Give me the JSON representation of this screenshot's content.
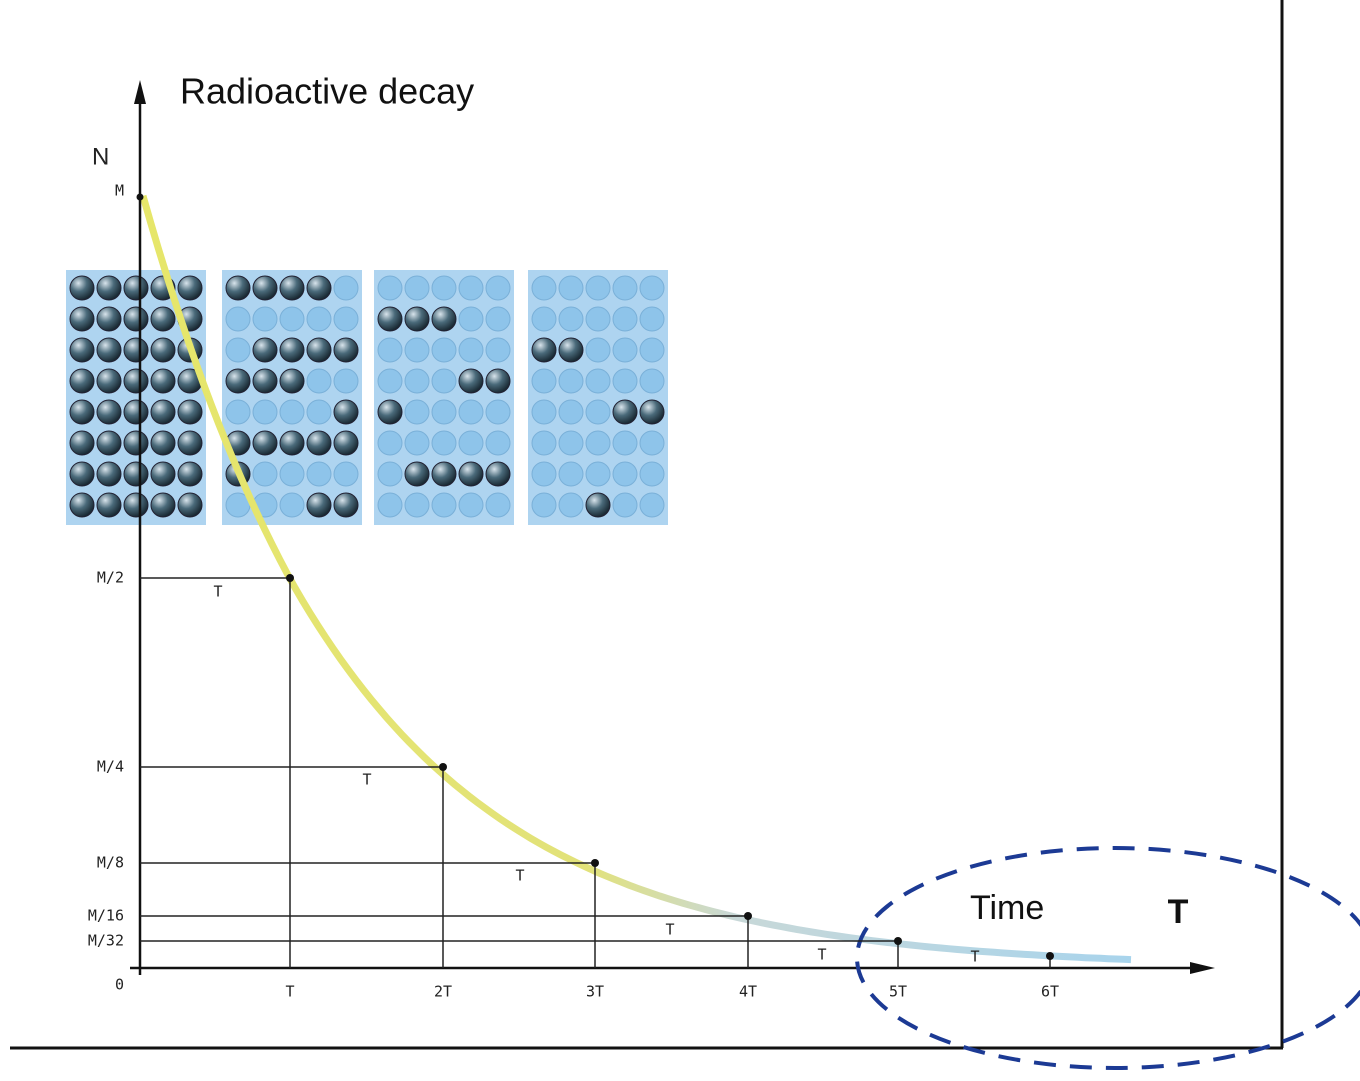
{
  "title": "Radioactive decay",
  "y_axis_label": "N",
  "x_axis_label": "T",
  "annotation": "Time",
  "origin": "0",
  "y_labels": [
    "M",
    "M/2",
    "M/4",
    "M/8",
    "M/16",
    "M/32"
  ],
  "x_labels": [
    "T",
    "2T",
    "3T",
    "4T",
    "5T",
    "6T"
  ],
  "interval_labels": [
    "T",
    "T",
    "T",
    "T",
    "T",
    "T"
  ]
}
